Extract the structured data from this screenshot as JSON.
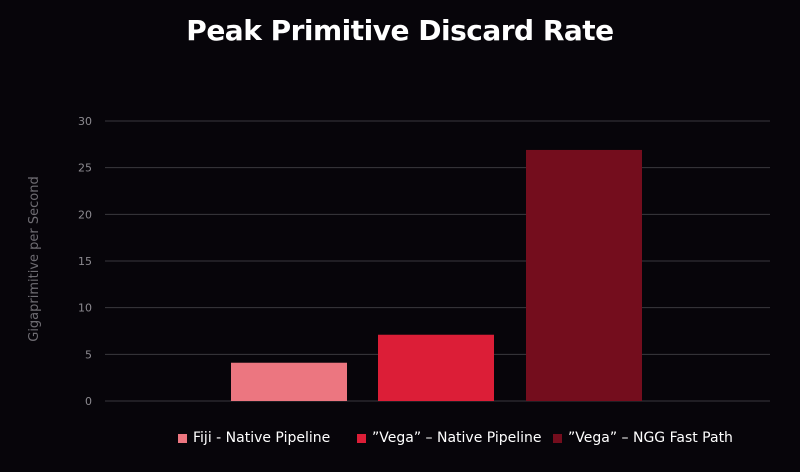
{
  "chart_data": {
    "type": "bar",
    "title": "Peak Primitive Discard Rate",
    "ylabel": "Gigaprimitive per Second",
    "xlabel": "",
    "ylim": [
      0,
      30
    ],
    "yticks": [
      0,
      5,
      10,
      15,
      20,
      25,
      30
    ],
    "grid": true,
    "legend_position": "bottom",
    "series": [
      {
        "name": "Fiji - Native Pipeline",
        "value": 4.1,
        "color": "#ec7680"
      },
      {
        "name": "”Vega” – Native Pipeline",
        "value": 7.1,
        "color": "#dc1e37"
      },
      {
        "name": "”Vega” – NGG Fast Path",
        "value": 26.9,
        "color": "#740d1d"
      }
    ]
  },
  "colors": {
    "background": "#07050a",
    "gridline": "#3a383e",
    "tick_text": "#8c8a90",
    "axis_label": "#6e6c72",
    "title": "#ffffff"
  }
}
